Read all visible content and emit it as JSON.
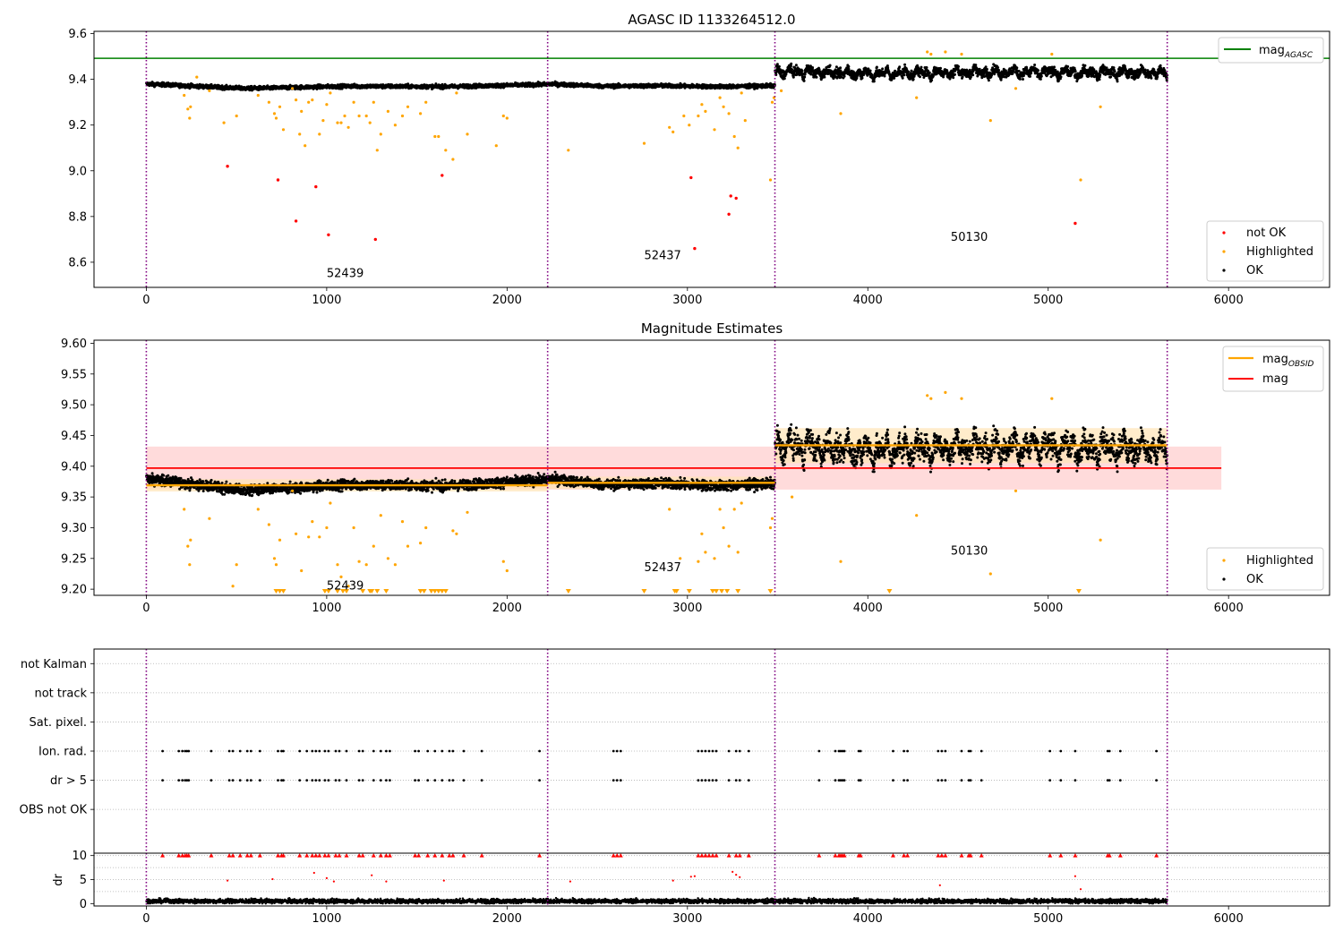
{
  "chart_data": [
    {
      "type": "scatter",
      "title": "AGASC ID 1133264512.0",
      "xlim": [
        -290,
        6560
      ],
      "ylim": [
        8.49,
        9.61
      ],
      "xticks": [
        0,
        1000,
        2000,
        3000,
        4000,
        5000,
        6000
      ],
      "yticks": [
        8.6,
        8.8,
        9.0,
        9.2,
        9.4,
        9.6
      ],
      "ytick_labels": [
        "8.6",
        "8.8",
        "9.0",
        "9.2",
        "9.4",
        "9.6"
      ],
      "vlines": [
        0,
        2225,
        3485,
        5660
      ],
      "hlines": [
        {
          "name": "mag_AGASC",
          "y": 9.492,
          "x": [
            -290,
            6560
          ],
          "color": "#008000"
        }
      ],
      "segments": [
        {
          "obsid": "52439",
          "x": [
            0,
            2225
          ],
          "level": 9.368,
          "trend": [
            9.38,
            9.36,
            9.37,
            9.368,
            9.378
          ],
          "noise": 0.008
        },
        {
          "obsid": "52437",
          "x": [
            2225,
            3485
          ],
          "level": 9.372,
          "trend": [
            9.38,
            9.37,
            9.372,
            9.368,
            9.372
          ],
          "noise": 0.008
        },
        {
          "obsid": "50130",
          "x": [
            3485,
            5660
          ],
          "level": 9.43,
          "trend": [
            9.435,
            9.425,
            9.432,
            9.43,
            9.428
          ],
          "noise": 0.018
        }
      ],
      "highlighted": [
        [
          210,
          9.33
        ],
        [
          230,
          9.27
        ],
        [
          240,
          9.23
        ],
        [
          245,
          9.28
        ],
        [
          280,
          9.41
        ],
        [
          350,
          9.35
        ],
        [
          430,
          9.21
        ],
        [
          500,
          9.24
        ],
        [
          620,
          9.33
        ],
        [
          680,
          9.3
        ],
        [
          710,
          9.25
        ],
        [
          720,
          9.23
        ],
        [
          740,
          9.28
        ],
        [
          760,
          9.18
        ],
        [
          810,
          9.36
        ],
        [
          830,
          9.31
        ],
        [
          850,
          9.16
        ],
        [
          860,
          9.26
        ],
        [
          880,
          9.11
        ],
        [
          900,
          9.3
        ],
        [
          920,
          9.31
        ],
        [
          960,
          9.16
        ],
        [
          980,
          9.22
        ],
        [
          1000,
          9.29
        ],
        [
          1020,
          9.34
        ],
        [
          1060,
          9.21
        ],
        [
          1080,
          9.21
        ],
        [
          1100,
          9.24
        ],
        [
          1120,
          9.19
        ],
        [
          1150,
          9.3
        ],
        [
          1180,
          9.24
        ],
        [
          1220,
          9.24
        ],
        [
          1240,
          9.21
        ],
        [
          1260,
          9.3
        ],
        [
          1280,
          9.09
        ],
        [
          1300,
          9.16
        ],
        [
          1340,
          9.26
        ],
        [
          1380,
          9.2
        ],
        [
          1420,
          9.24
        ],
        [
          1450,
          9.28
        ],
        [
          1520,
          9.25
        ],
        [
          1550,
          9.3
        ],
        [
          1600,
          9.15
        ],
        [
          1620,
          9.15
        ],
        [
          1660,
          9.09
        ],
        [
          1700,
          9.05
        ],
        [
          1720,
          9.34
        ],
        [
          1780,
          9.16
        ],
        [
          1940,
          9.11
        ],
        [
          1980,
          9.24
        ],
        [
          2000,
          9.23
        ],
        [
          2340,
          9.09
        ],
        [
          2760,
          9.12
        ],
        [
          2900,
          9.19
        ],
        [
          2920,
          9.17
        ],
        [
          2980,
          9.24
        ],
        [
          3010,
          9.2
        ],
        [
          3060,
          9.24
        ],
        [
          3080,
          9.29
        ],
        [
          3100,
          9.26
        ],
        [
          3150,
          9.18
        ],
        [
          3180,
          9.32
        ],
        [
          3200,
          9.28
        ],
        [
          3230,
          9.25
        ],
        [
          3260,
          9.15
        ],
        [
          3280,
          9.1
        ],
        [
          3300,
          9.34
        ],
        [
          3320,
          9.22
        ],
        [
          3460,
          8.96
        ],
        [
          3470,
          9.3
        ],
        [
          3480,
          9.32
        ],
        [
          3520,
          9.35
        ],
        [
          3850,
          9.25
        ],
        [
          4270,
          9.32
        ],
        [
          4330,
          9.52
        ],
        [
          4350,
          9.51
        ],
        [
          4430,
          9.52
        ],
        [
          4520,
          9.51
        ],
        [
          4680,
          9.22
        ],
        [
          4820,
          9.36
        ],
        [
          5020,
          9.51
        ],
        [
          5290,
          9.28
        ],
        [
          5180,
          8.96
        ]
      ],
      "not_ok": [
        [
          450,
          9.02
        ],
        [
          730,
          8.96
        ],
        [
          830,
          8.78
        ],
        [
          940,
          8.93
        ],
        [
          1010,
          8.72
        ],
        [
          1270,
          8.7
        ],
        [
          1640,
          8.98
        ],
        [
          3020,
          8.97
        ],
        [
          3040,
          8.66
        ],
        [
          3230,
          8.81
        ],
        [
          3240,
          8.89
        ],
        [
          3270,
          8.88
        ],
        [
          5150,
          8.77
        ]
      ],
      "annotations": [
        {
          "text": "52439",
          "x": 1000,
          "y": 8.55
        },
        {
          "text": "52437",
          "x": 2760,
          "y": 8.63
        },
        {
          "text": "50130",
          "x": 4460,
          "y": 8.71
        }
      ],
      "legend_series": [
        "mag_AGASC",
        "not OK",
        "Highlighted",
        "OK"
      ],
      "legend_locations": [
        "upper right",
        "lower right"
      ],
      "grid": false
    },
    {
      "type": "scatter",
      "title": "Magnitude Estimates",
      "xlim": [
        -290,
        6560
      ],
      "ylim": [
        9.19,
        9.605
      ],
      "xticks": [
        0,
        1000,
        2000,
        3000,
        4000,
        5000,
        6000
      ],
      "yticks": [
        9.2,
        9.25,
        9.3,
        9.35,
        9.4,
        9.45,
        9.5,
        9.55,
        9.6
      ],
      "ytick_labels": [
        "9.20",
        "9.25",
        "9.30",
        "9.35",
        "9.40",
        "9.45",
        "9.50",
        "9.55",
        "9.60"
      ],
      "vlines": [
        0,
        2225,
        3485,
        5660
      ],
      "mag": {
        "y": 9.397,
        "x": [
          0,
          5960
        ],
        "band": [
          9.362,
          9.432
        ],
        "color": "#ff0000"
      },
      "mag_obsid": [
        {
          "obsid": "52439",
          "x": [
            0,
            2225
          ],
          "y": 9.369,
          "band": [
            9.359,
            9.379
          ]
        },
        {
          "obsid": "52437",
          "x": [
            2225,
            3485
          ],
          "y": 9.373,
          "band": [
            9.363,
            9.383
          ]
        },
        {
          "obsid": "50130",
          "x": [
            3485,
            5660
          ],
          "y": 9.434,
          "band": [
            9.405,
            9.462
          ]
        }
      ],
      "highlighted": [
        [
          210,
          9.33
        ],
        [
          230,
          9.27
        ],
        [
          240,
          9.24
        ],
        [
          245,
          9.28
        ],
        [
          350,
          9.315
        ],
        [
          480,
          9.205
        ],
        [
          500,
          9.24
        ],
        [
          620,
          9.33
        ],
        [
          680,
          9.305
        ],
        [
          710,
          9.25
        ],
        [
          720,
          9.24
        ],
        [
          740,
          9.28
        ],
        [
          810,
          9.36
        ],
        [
          830,
          9.29
        ],
        [
          860,
          9.23
        ],
        [
          900,
          9.285
        ],
        [
          920,
          9.31
        ],
        [
          960,
          9.285
        ],
        [
          1000,
          9.3
        ],
        [
          1020,
          9.34
        ],
        [
          1060,
          9.24
        ],
        [
          1080,
          9.22
        ],
        [
          1120,
          9.205
        ],
        [
          1150,
          9.3
        ],
        [
          1180,
          9.245
        ],
        [
          1220,
          9.24
        ],
        [
          1260,
          9.27
        ],
        [
          1300,
          9.32
        ],
        [
          1340,
          9.25
        ],
        [
          1380,
          9.24
        ],
        [
          1420,
          9.31
        ],
        [
          1450,
          9.27
        ],
        [
          1520,
          9.275
        ],
        [
          1550,
          9.3
        ],
        [
          1700,
          9.295
        ],
        [
          1720,
          9.29
        ],
        [
          1780,
          9.325
        ],
        [
          1980,
          9.245
        ],
        [
          2000,
          9.23
        ],
        [
          2900,
          9.33
        ],
        [
          2960,
          9.25
        ],
        [
          3060,
          9.245
        ],
        [
          3080,
          9.29
        ],
        [
          3100,
          9.26
        ],
        [
          3150,
          9.25
        ],
        [
          3180,
          9.33
        ],
        [
          3200,
          9.3
        ],
        [
          3230,
          9.27
        ],
        [
          3260,
          9.33
        ],
        [
          3280,
          9.26
        ],
        [
          3300,
          9.34
        ],
        [
          3460,
          9.3
        ],
        [
          3470,
          9.315
        ],
        [
          3580,
          9.35
        ],
        [
          3850,
          9.245
        ],
        [
          4270,
          9.32
        ],
        [
          4330,
          9.515
        ],
        [
          4350,
          9.51
        ],
        [
          4430,
          9.52
        ],
        [
          4520,
          9.51
        ],
        [
          4680,
          9.225
        ],
        [
          4820,
          9.36
        ],
        [
          5020,
          9.51
        ],
        [
          5290,
          9.28
        ]
      ],
      "lower_limits": [
        720,
        740,
        760,
        990,
        1010,
        1060,
        1090,
        1110,
        1200,
        1240,
        1250,
        1280,
        1330,
        1520,
        1540,
        1580,
        1600,
        1620,
        1640,
        1660,
        2340,
        2760,
        2930,
        2940,
        3010,
        3140,
        3160,
        3190,
        3220,
        3280,
        3460,
        4120,
        5170
      ],
      "annotations": [
        {
          "text": "52439",
          "x": 1000,
          "y": 9.205
        },
        {
          "text": "52437",
          "x": 2760,
          "y": 9.235
        },
        {
          "text": "50130",
          "x": 4460,
          "y": 9.262
        }
      ],
      "legend_series": [
        "mag_OBSID",
        "mag",
        "Highlighted",
        "OK"
      ],
      "legend_locations": [
        "upper right",
        "lower right"
      ],
      "grid": false
    },
    {
      "type": "scatter",
      "title": "",
      "xlim": [
        -290,
        6560
      ],
      "ylim": [
        -0.5,
        6.5
      ],
      "yticks": [
        1,
        2,
        3,
        4,
        5,
        6
      ],
      "ytick_labels": [
        "OBS not OK",
        "dr > 5",
        "Ion. rad.",
        "Sat. pixel.",
        "not track",
        "not Kalman"
      ],
      "vlines": [
        0,
        2225,
        3485,
        5660
      ],
      "flag_x": [
        90,
        180,
        200,
        215,
        225,
        235,
        360,
        460,
        480,
        520,
        560,
        580,
        630,
        730,
        750,
        760,
        850,
        890,
        920,
        940,
        960,
        990,
        1010,
        1050,
        1070,
        1110,
        1180,
        1200,
        1260,
        1300,
        1330,
        1350,
        1490,
        1510,
        1560,
        1600,
        1640,
        1680,
        1700,
        1760,
        1860,
        2180,
        2590,
        2610,
        2630,
        3060,
        3080,
        3100,
        3120,
        3140,
        3160,
        3230,
        3270,
        3290,
        3340,
        3730,
        3820,
        3840,
        3850,
        3860,
        3870,
        3950,
        3960,
        4140,
        4200,
        4220,
        4390,
        4410,
        4430,
        4520,
        4560,
        4570,
        4630,
        5010,
        5070,
        5150,
        5330,
        5340,
        5400,
        5600
      ],
      "grid": true,
      "grid_style": "dotted"
    },
    {
      "type": "scatter",
      "title": "",
      "ylabel": "dr",
      "xlim": [
        -290,
        6560
      ],
      "ylim": [
        -0.5,
        10.5
      ],
      "xticks": [
        0,
        1000,
        2000,
        3000,
        4000,
        5000,
        6000
      ],
      "yticks": [
        0,
        5,
        10
      ],
      "ytick_labels": [
        "0",
        "5",
        "10"
      ],
      "vlines": [
        0,
        2225,
        3485,
        5660
      ],
      "dr_outliers": [
        [
          450,
          4.8
        ],
        [
          700,
          5.1
        ],
        [
          930,
          6.4
        ],
        [
          1000,
          5.3
        ],
        [
          1040,
          4.6
        ],
        [
          1250,
          5.9
        ],
        [
          1330,
          4.6
        ],
        [
          1650,
          4.8
        ],
        [
          2350,
          4.6
        ],
        [
          2920,
          4.8
        ],
        [
          3020,
          5.6
        ],
        [
          3040,
          5.7
        ],
        [
          3250,
          6.6
        ],
        [
          3270,
          6.0
        ],
        [
          3290,
          5.5
        ],
        [
          4400,
          3.8
        ],
        [
          5150,
          5.7
        ],
        [
          5180,
          3.0
        ]
      ],
      "dr_clipped_x": [
        90,
        180,
        200,
        215,
        225,
        235,
        360,
        460,
        480,
        520,
        560,
        580,
        630,
        730,
        750,
        760,
        850,
        890,
        920,
        940,
        960,
        990,
        1010,
        1050,
        1070,
        1110,
        1180,
        1200,
        1260,
        1300,
        1330,
        1350,
        1490,
        1510,
        1560,
        1600,
        1640,
        1680,
        1700,
        1760,
        1860,
        2180,
        2590,
        2610,
        2630,
        3060,
        3080,
        3100,
        3120,
        3140,
        3160,
        3230,
        3270,
        3290,
        3340,
        3730,
        3820,
        3840,
        3850,
        3860,
        3870,
        3950,
        3960,
        4140,
        4200,
        4220,
        4390,
        4410,
        4430,
        4520,
        4560,
        4570,
        4630,
        5010,
        5070,
        5150,
        5330,
        5340,
        5400,
        5600
      ],
      "grid": true,
      "grid_style": "dotted"
    }
  ],
  "legends": {
    "top": {
      "mag_agasc_main": "mag",
      "mag_agasc_sub": "AGASC",
      "not_ok": "not OK",
      "highlighted": "Highlighted",
      "ok": "OK"
    },
    "mid": {
      "mag_obsid_main": "mag",
      "mag_obsid_sub": "OBSID",
      "mag": "mag",
      "highlighted": "Highlighted",
      "ok": "OK"
    }
  },
  "colors": {
    "ok": "#000000",
    "highlighted": "#ffa500",
    "not_ok": "#ff0000",
    "mag_agasc": "#008000",
    "mag": "#ff0000",
    "mag_obsid": "#ffa500",
    "vline": "#800080",
    "band_mag": "#ffcccc",
    "band_obsid": "#ffe4b5"
  }
}
